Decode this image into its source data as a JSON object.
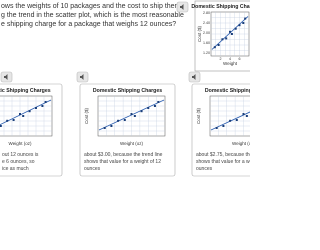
{
  "question": {
    "lines": [
      "ows the weights of 10 packages and the cost to ship them",
      "g the trend in the scatter plot, which is the most reasonable",
      "e shipping charge for a package that weighs 12 ounces?"
    ]
  },
  "preview_chart": {
    "title": "Domestic Shipping Charges",
    "y_label": "Cost ($)",
    "x_label": "Weight",
    "yticks": [
      "2.80",
      "2.40",
      "2.00",
      "1.60",
      "1.20"
    ],
    "xticks": [
      "2",
      "4",
      "6"
    ]
  },
  "choices": [
    {
      "chart_title": "Domestic Shipping Charges",
      "y_label": "Cost ($)",
      "x_label": "Weight (oz)",
      "lines": [
        "out 12 ounces is",
        "e 6 ounces, so",
        "ice as much"
      ]
    },
    {
      "chart_title": "Domestic Shipping Charges",
      "y_label": "Cost ($)",
      "x_label": "Weight (oz)",
      "lines": [
        "about $3.00, because the trend line",
        "shows that value for a weight of 12",
        "ounces"
      ]
    },
    {
      "chart_title": "Domestic Shipping Charges",
      "y_label": "Cost ($)",
      "x_label": "Weight (oz)",
      "lines": [
        "about $2.75, because the trend line",
        "shows that value for a weight of 12",
        "ounces"
      ]
    }
  ]
}
